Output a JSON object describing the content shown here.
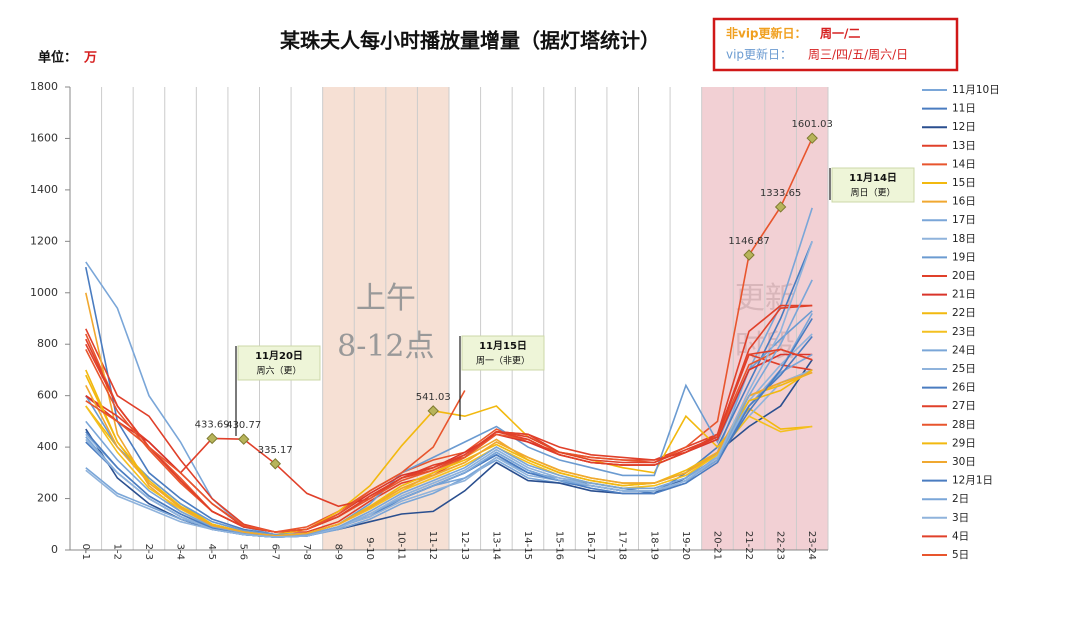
{
  "chart_data": {
    "type": "line",
    "title": "某珠夫人每小时播放量增量（据灯塔统计）",
    "unit_label": "单位：",
    "unit": "万",
    "note_lines": [
      {
        "label": "非vip更新日：",
        "days": "周一/二"
      },
      {
        "label": "vip更新日：",
        "days": "周三/四/五/周六/日"
      }
    ],
    "categories": [
      "0-1",
      "1-2",
      "2-3",
      "3-4",
      "4-5",
      "5-6",
      "6-7",
      "7-8",
      "8-9",
      "9-10",
      "10-11",
      "11-12",
      "12-13",
      "13-14",
      "14-15",
      "15-16",
      "16-17",
      "17-18",
      "18-19",
      "19-20",
      "20-21",
      "21-22",
      "22-23",
      "23-24"
    ],
    "ylim": [
      0,
      1800
    ],
    "yticks": [
      0,
      200,
      400,
      600,
      800,
      1000,
      1200,
      1400,
      1600,
      1800
    ],
    "grid": true,
    "shades": [
      {
        "from": "8-9",
        "to": "11-12",
        "color": "#f6e0d4",
        "label": [
          "上午",
          "8-12点"
        ]
      },
      {
        "from": "20-21",
        "to": "23-24",
        "color": "#f2d0d4",
        "label": [
          "更新",
          "时段"
        ]
      }
    ],
    "annotations": [
      {
        "title": "11月20日",
        "subtitle": "周六（更）"
      },
      {
        "title": "11月15日",
        "subtitle": "周一（非更）"
      },
      {
        "title": "11月14日",
        "subtitle": "周日（更）"
      }
    ],
    "series": [
      {
        "name": "11月10日",
        "color": "#7aa6d8",
        "values": [
          1120,
          940,
          600,
          420,
          200,
          90,
          60,
          55,
          90,
          130,
          200,
          250,
          280,
          350,
          280,
          260,
          250,
          230,
          230,
          280,
          380,
          700,
          950,
          1330
        ]
      },
      {
        "name": "11日",
        "color": "#4a7cc0",
        "values": [
          1100,
          500,
          300,
          200,
          120,
          80,
          60,
          60,
          90,
          130,
          200,
          250,
          300,
          370,
          300,
          270,
          260,
          240,
          220,
          300,
          400,
          650,
          900,
          1200
        ]
      },
      {
        "name": "12日",
        "color": "#2a4f8f",
        "values": [
          470,
          280,
          180,
          120,
          80,
          60,
          50,
          60,
          80,
          110,
          140,
          150,
          230,
          340,
          270,
          260,
          230,
          220,
          220,
          280,
          380,
          480,
          560,
          740
        ]
      },
      {
        "name": "13日",
        "color": "#e0402a",
        "values": [
          860,
          600,
          520,
          350,
          200,
          100,
          70,
          70,
          110,
          190,
          260,
          290,
          360,
          460,
          450,
          380,
          360,
          350,
          350,
          400,
          450,
          760,
          720,
          700
        ]
      },
      {
        "name": "14日",
        "color": "#e8552d",
        "values": [
          840,
          560,
          400,
          280,
          150,
          90,
          70,
          90,
          150,
          230,
          300,
          350,
          380,
          470,
          420,
          380,
          360,
          350,
          340,
          400,
          500,
          1146.87,
          1333.65,
          1601.03
        ],
        "value_labels": [
          null,
          null,
          null,
          null,
          null,
          null,
          null,
          null,
          null,
          null,
          null,
          null,
          null,
          null,
          null,
          null,
          null,
          null,
          null,
          null,
          null,
          "1146.87",
          "1333.65",
          "1601.03"
        ]
      },
      {
        "name": "15日",
        "color": "#f2b90f",
        "values": [
          560,
          400,
          280,
          180,
          100,
          70,
          60,
          80,
          150,
          250,
          405,
          541.03,
          520,
          560,
          440,
          380,
          350,
          320,
          300,
          520,
          400,
          550,
          470,
          480
        ],
        "value_labels": [
          null,
          null,
          null,
          null,
          null,
          null,
          null,
          null,
          null,
          null,
          null,
          "541.03",
          null,
          null,
          null,
          null,
          null,
          null,
          null,
          null,
          null,
          null,
          null,
          null
        ]
      },
      {
        "name": "16日",
        "color": "#f0a830",
        "values": [
          1000,
          450,
          250,
          150,
          90,
          65,
          55,
          65,
          100,
          160,
          230,
          300,
          360,
          430,
          350,
          300,
          270,
          250,
          260,
          300,
          380,
          600,
          650,
          700
        ]
      },
      {
        "name": "17日",
        "color": "#7aa6d8",
        "values": [
          320,
          220,
          170,
          120,
          85,
          60,
          50,
          55,
          80,
          120,
          180,
          220,
          280,
          360,
          300,
          280,
          260,
          240,
          240,
          280,
          380,
          560,
          700,
          920
        ]
      },
      {
        "name": "18日",
        "color": "#8fb3dc",
        "values": [
          310,
          210,
          160,
          110,
          80,
          60,
          50,
          55,
          90,
          130,
          190,
          230,
          270,
          360,
          290,
          270,
          250,
          230,
          230,
          260,
          370,
          520,
          650,
          700
        ]
      },
      {
        "name": "19日",
        "color": "#6b9bd1",
        "values": [
          600,
          400,
          280,
          180,
          110,
          75,
          60,
          65,
          100,
          180,
          300,
          360,
          420,
          480,
          400,
          350,
          320,
          290,
          290,
          640,
          420,
          700,
          820,
          930
        ]
      },
      {
        "name": "20日",
        "color": "#e0402a",
        "values": [
          600,
          520,
          420,
          300,
          433.69,
          430.77,
          335.17,
          220,
          170,
          200,
          280,
          330,
          360,
          460,
          450,
          400,
          370,
          360,
          350,
          380,
          450,
          850,
          950,
          950
        ],
        "value_labels": [
          null,
          null,
          null,
          null,
          "433.69",
          "430.77",
          "335.17",
          null,
          null,
          null,
          null,
          null,
          null,
          null,
          null,
          null,
          null,
          null,
          null,
          null,
          null,
          null,
          null,
          null
        ]
      },
      {
        "name": "21日",
        "color": "#d9342a",
        "values": [
          600,
          500,
          420,
          300,
          180,
          90,
          70,
          80,
          140,
          220,
          290,
          320,
          380,
          450,
          420,
          370,
          340,
          330,
          330,
          380,
          430,
          700,
          760,
          760
        ]
      },
      {
        "name": "22日",
        "color": "#f2b90f",
        "values": [
          700,
          420,
          260,
          170,
          100,
          70,
          55,
          65,
          100,
          170,
          250,
          300,
          350,
          410,
          350,
          300,
          270,
          250,
          260,
          300,
          370,
          600,
          640,
          690
        ]
      },
      {
        "name": "23日",
        "color": "#f4c020",
        "values": [
          560,
          380,
          240,
          160,
          95,
          70,
          55,
          65,
          100,
          160,
          230,
          280,
          330,
          400,
          340,
          290,
          260,
          240,
          250,
          290,
          370,
          520,
          460,
          480
        ]
      },
      {
        "name": "24日",
        "color": "#7aa6d8",
        "values": [
          500,
          350,
          230,
          150,
          90,
          65,
          55,
          60,
          90,
          150,
          220,
          270,
          320,
          400,
          330,
          290,
          260,
          240,
          240,
          280,
          360,
          560,
          690,
          760
        ]
      },
      {
        "name": "25日",
        "color": "#8fb3dc",
        "values": [
          450,
          320,
          210,
          140,
          85,
          60,
          50,
          55,
          85,
          140,
          210,
          260,
          310,
          390,
          320,
          280,
          250,
          230,
          230,
          270,
          350,
          580,
          720,
          840
        ]
      },
      {
        "name": "26日",
        "color": "#4a7cc0",
        "values": [
          420,
          300,
          200,
          130,
          80,
          60,
          50,
          55,
          85,
          140,
          200,
          250,
          300,
          380,
          310,
          270,
          240,
          220,
          220,
          260,
          340,
          560,
          680,
          830
        ]
      },
      {
        "name": "27日",
        "color": "#e0402a",
        "values": [
          820,
          560,
          400,
          270,
          150,
          90,
          70,
          80,
          130,
          210,
          280,
          310,
          370,
          460,
          440,
          380,
          350,
          340,
          340,
          390,
          440,
          780,
          940,
          950
        ]
      },
      {
        "name": "28日",
        "color": "#e8552d",
        "values": [
          780,
          540,
          390,
          260,
          150,
          90,
          70,
          80,
          130,
          200,
          270,
          310,
          360,
          450,
          430,
          370,
          340,
          330,
          330,
          380,
          440,
          720,
          780,
          740
        ]
      },
      {
        "name": "29日",
        "color": "#f2b90f",
        "values": [
          680,
          420,
          270,
          170,
          100,
          70,
          55,
          65,
          100,
          170,
          240,
          290,
          340,
          420,
          360,
          310,
          280,
          260,
          260,
          310,
          380,
          580,
          620,
          700
        ]
      },
      {
        "name": "30日",
        "color": "#f0a830",
        "values": [
          640,
          400,
          260,
          165,
          95,
          70,
          55,
          65,
          100,
          165,
          240,
          290,
          340,
          420,
          360,
          310,
          280,
          260,
          260,
          300,
          380,
          600,
          650,
          690
        ]
      },
      {
        "name": "12月1日",
        "color": "#4a7cc0",
        "values": [
          460,
          320,
          210,
          140,
          85,
          60,
          50,
          55,
          85,
          140,
          200,
          250,
          300,
          370,
          300,
          270,
          250,
          230,
          230,
          270,
          350,
          540,
          700,
          900
        ]
      },
      {
        "name": "2日",
        "color": "#7aa6d8",
        "values": [
          440,
          300,
          200,
          130,
          80,
          60,
          50,
          55,
          85,
          140,
          200,
          250,
          300,
          380,
          310,
          270,
          250,
          230,
          230,
          270,
          350,
          600,
          800,
          1050
        ]
      },
      {
        "name": "3日",
        "color": "#8fb3dc",
        "values": [
          430,
          300,
          200,
          130,
          80,
          60,
          50,
          55,
          85,
          140,
          210,
          260,
          310,
          390,
          320,
          280,
          250,
          230,
          230,
          270,
          360,
          620,
          850,
          1200
        ]
      },
      {
        "name": "4日",
        "color": "#e0402a",
        "values": [
          800,
          560,
          400,
          270,
          150,
          90,
          70,
          80,
          130,
          210,
          280,
          320,
          370,
          460,
          430,
          370,
          340,
          330,
          330,
          380,
          440,
          760,
          780,
          740
        ]
      },
      {
        "name": "5日",
        "color": "#e8552d",
        "values": [
          580,
          500,
          400,
          300,
          180,
          95,
          70,
          80,
          140,
          230,
          300,
          400,
          620,
          null,
          null,
          null,
          null,
          null,
          null,
          null,
          null,
          null,
          null,
          null
        ]
      }
    ]
  }
}
